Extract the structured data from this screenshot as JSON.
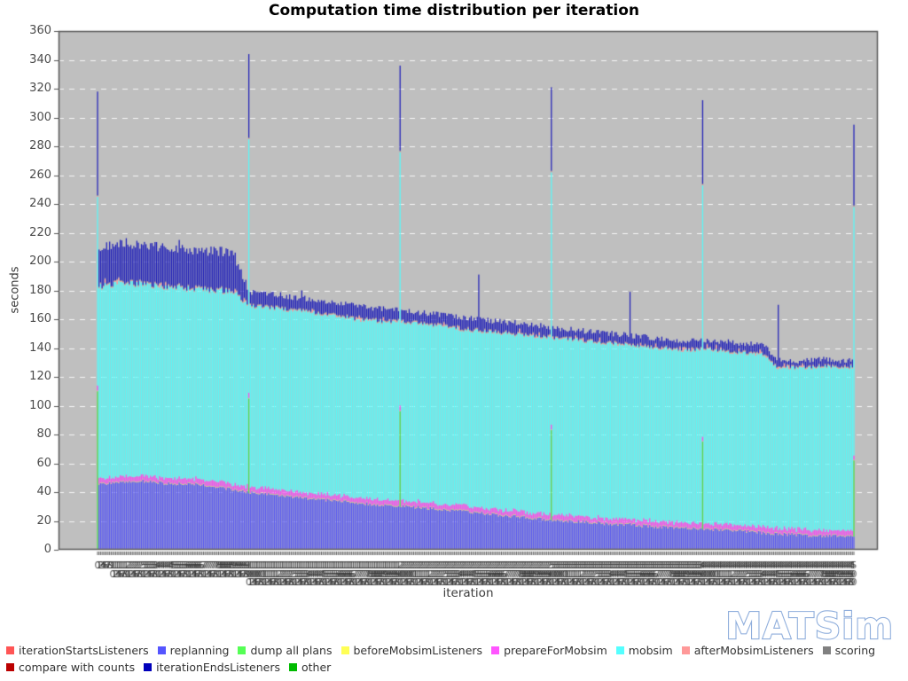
{
  "title": "Computation time distribution per iteration",
  "watermark": "MATSim",
  "axes": {
    "x_label": "iteration",
    "y_label": "seconds",
    "y_min": 0,
    "y_max": 360,
    "y_tick_step": 20,
    "x_min": 0,
    "x_max": 500
  },
  "legend": {
    "rows": [
      [
        {
          "label": "iterationStartsListeners",
          "color": "#FF5555"
        },
        {
          "label": "replanning",
          "color": "#5555FF"
        },
        {
          "label": "dump all plans",
          "color": "#55FF55"
        },
        {
          "label": "beforeMobsimListeners",
          "color": "#FFFF55"
        },
        {
          "label": "prepareForMobsim",
          "color": "#FF55FF"
        },
        {
          "label": "mobsim",
          "color": "#55FFFF"
        },
        {
          "label": "afterMobsimListeners",
          "color": "#FF9999"
        },
        {
          "label": "scoring",
          "color": "#808080"
        }
      ],
      [
        {
          "label": "compare with counts",
          "color": "#BB0000"
        },
        {
          "label": "iterationEndsListeners",
          "color": "#0000BB"
        },
        {
          "label": "other",
          "color": "#00BB00"
        }
      ]
    ]
  },
  "chart_data": {
    "type": "bar",
    "stacked": true,
    "title": "Computation time distribution per iteration",
    "xlabel": "iteration",
    "ylabel": "seconds",
    "ylim": [
      0,
      360
    ],
    "grid": "horizontal dashed white on gray plot background",
    "legend_position": "bottom-left, two rows",
    "x_categories_note": "one stacked bar per iteration, 0 through 500, every iteration tick-labeled (labels overlap into a dark smear)",
    "series_stack_order": [
      "iterationStartsListeners",
      "replanning",
      "dump all plans",
      "beforeMobsimListeners",
      "prepareForMobsim",
      "mobsim",
      "afterMobsimListeners",
      "scoring",
      "compare with counts",
      "iterationEndsListeners",
      "other"
    ],
    "constant_seconds": {
      "iterationStartsListeners": 0.7,
      "beforeMobsimListeners": 0.4,
      "prepareForMobsim": 3.5,
      "afterMobsimListeners": 0.5,
      "scoring": 0.5,
      "compare with counts": 0,
      "other": 0
    },
    "sampled_iterations": [
      0,
      10,
      20,
      30,
      40,
      50,
      60,
      70,
      80,
      90,
      100,
      110,
      120,
      130,
      140,
      150,
      160,
      170,
      180,
      190,
      200,
      210,
      220,
      230,
      240,
      250,
      260,
      270,
      280,
      290,
      300,
      310,
      320,
      330,
      340,
      350,
      360,
      370,
      380,
      390,
      400,
      410,
      420,
      430,
      440,
      450,
      460,
      470,
      480,
      490,
      500
    ],
    "replanning_seconds": [
      44,
      46,
      47,
      47,
      46,
      45,
      45,
      44,
      43,
      41,
      39,
      38,
      37,
      36,
      35,
      34,
      33,
      32,
      31,
      30,
      30,
      29,
      28,
      27,
      26,
      25,
      24,
      23,
      22,
      21,
      20,
      19,
      19,
      18,
      17,
      17,
      16,
      15,
      15,
      14,
      14,
      13,
      13,
      12,
      11,
      10,
      10,
      9,
      9,
      9,
      9
    ],
    "mobsim_stack_top_seconds": [
      182,
      184,
      185,
      184,
      183,
      182,
      181,
      180,
      180,
      179,
      169,
      168,
      167,
      166,
      165,
      163,
      162,
      160,
      159,
      158,
      158,
      157,
      156,
      155,
      153,
      152,
      151,
      150,
      149,
      148,
      147,
      146,
      145,
      144,
      143,
      142,
      141,
      140,
      139,
      138,
      139,
      138,
      137,
      136,
      135,
      126,
      126,
      126,
      127,
      126,
      127
    ],
    "total_stack_top_seconds": [
      210,
      212,
      213,
      211,
      210,
      209,
      208,
      207,
      207,
      206,
      179,
      178,
      177,
      175,
      174,
      172,
      171,
      170,
      168,
      167,
      166,
      165,
      164,
      163,
      161,
      160,
      159,
      158,
      157,
      156,
      154,
      153,
      152,
      151,
      150,
      149,
      148,
      147,
      146,
      145,
      146,
      145,
      144,
      143,
      142,
      132,
      131,
      131,
      132,
      131,
      132
    ],
    "dump_iterations": [
      {
        "iter": 0,
        "dump_all_plans_top": 110,
        "mobsim_stack_top": 245,
        "total_stack_top": 318,
        "replanning": 0
      },
      {
        "iter": 100,
        "dump_all_plans_top": 105,
        "mobsim_stack_top": 285,
        "total_stack_top": 344
      },
      {
        "iter": 200,
        "dump_all_plans_top": 96,
        "mobsim_stack_top": 276,
        "total_stack_top": 336
      },
      {
        "iter": 300,
        "dump_all_plans_top": 83,
        "mobsim_stack_top": 262,
        "total_stack_top": 321
      },
      {
        "iter": 400,
        "dump_all_plans_top": 75,
        "mobsim_stack_top": 253,
        "total_stack_top": 312
      },
      {
        "iter": 500,
        "dump_all_plans_top": 62,
        "mobsim_stack_top": 238,
        "total_stack_top": 295
      }
    ],
    "iterationEndsListeners_spikes": [
      {
        "iter": 54,
        "total_stack_top": 215
      },
      {
        "iter": 135,
        "total_stack_top": 180
      },
      {
        "iter": 252,
        "total_stack_top": 191
      },
      {
        "iter": 352,
        "total_stack_top": 179
      },
      {
        "iter": 450,
        "total_stack_top": 170
      }
    ]
  },
  "plot_style": {
    "background": "#BFBFBF",
    "border": "#5A5A5A",
    "grid_color": "rgba(255,255,255,0.85)",
    "tick_color": "#555555",
    "bar_colors": {
      "iterationStartsListeners": "#F05050",
      "replanning": "#5A5AF0",
      "dump all plans": "#4CDC4C",
      "beforeMobsimListeners": "#F0F050",
      "prepareForMobsim": "#F050F0",
      "mobsim": "#58F8F8",
      "afterMobsimListeners": "#FF9999",
      "scoring": "#808080",
      "iterationEndsListeners": "#2020B8"
    }
  }
}
